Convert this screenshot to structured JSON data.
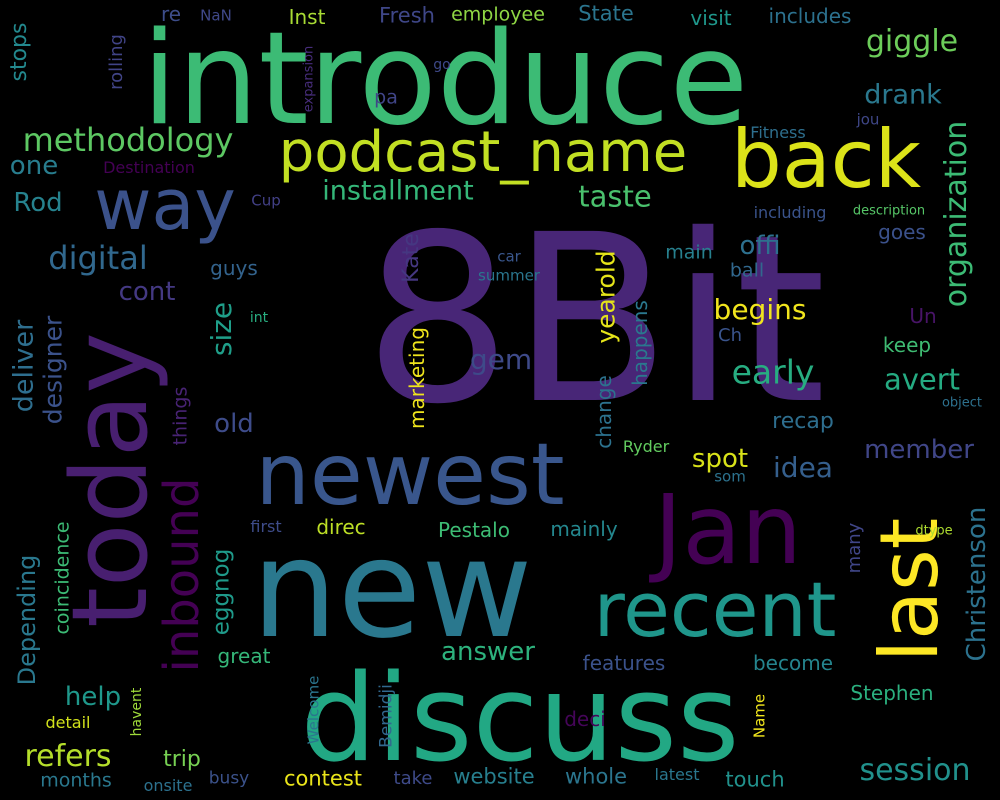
{
  "word_cloud": {
    "background": "#000000",
    "words": [
      {
        "text": "8Bit",
        "color": "#482677"
      },
      {
        "text": "introduce",
        "color": "#3CBB75"
      },
      {
        "text": "new",
        "color": "#2A788E"
      },
      {
        "text": "discuss",
        "color": "#22A884"
      },
      {
        "text": "Jan",
        "color": "#440154"
      },
      {
        "text": "today",
        "color": "#481F70"
      },
      {
        "text": "newest",
        "color": "#39568C"
      },
      {
        "text": "recent",
        "color": "#1F968B"
      },
      {
        "text": "back",
        "color": "#DCE319"
      },
      {
        "text": "last",
        "color": "#FDE725"
      },
      {
        "text": "way",
        "color": "#3B528B"
      },
      {
        "text": "podcast_name",
        "color": "#C2DF23"
      },
      {
        "text": "inbound",
        "color": "#440154"
      },
      {
        "text": "methodology",
        "color": "#5DC863"
      },
      {
        "text": "organization",
        "color": "#3CBB75"
      },
      {
        "text": "Christenson",
        "color": "#2C728E"
      },
      {
        "text": "session",
        "color": "#21918C"
      },
      {
        "text": "Depending",
        "color": "#2A788E"
      },
      {
        "text": "digital",
        "color": "#31688E"
      },
      {
        "text": "installment",
        "color": "#35B779"
      },
      {
        "text": "refers",
        "color": "#B5DE2B"
      },
      {
        "text": "giggle",
        "color": "#6CCD5A"
      },
      {
        "text": "drank",
        "color": "#2A788E"
      },
      {
        "text": "taste",
        "color": "#4AC16D"
      },
      {
        "text": "avert",
        "color": "#25AB82"
      },
      {
        "text": "early",
        "color": "#27AD81"
      },
      {
        "text": "idea",
        "color": "#355F8D"
      },
      {
        "text": "answer",
        "color": "#2DB27D"
      },
      {
        "text": "deliver",
        "color": "#2E6E8E"
      },
      {
        "text": "designer",
        "color": "#3B528B"
      },
      {
        "text": "size",
        "color": "#1F9E89"
      },
      {
        "text": "gem",
        "color": "#3E4A89"
      },
      {
        "text": "yearold",
        "color": "#E5E419"
      },
      {
        "text": "begins",
        "color": "#F1E51D"
      },
      {
        "text": "spot",
        "color": "#D8E219"
      },
      {
        "text": "member",
        "color": "#404688"
      },
      {
        "text": "Kate",
        "color": "#453781"
      },
      {
        "text": "eggnog",
        "color": "#1F9A8A"
      },
      {
        "text": "help",
        "color": "#1F988B"
      },
      {
        "text": "cont",
        "color": "#443983"
      },
      {
        "text": "offi",
        "color": "#2D708E"
      },
      {
        "text": "Rod",
        "color": "#26828E"
      },
      {
        "text": "one",
        "color": "#287D8E"
      },
      {
        "text": "old",
        "color": "#3E4C8A"
      },
      {
        "text": "stops",
        "color": "#23898E"
      },
      {
        "text": "rolling",
        "color": "#414487"
      },
      {
        "text": "re",
        "color": "#3D4D8A"
      },
      {
        "text": "NaN",
        "color": "#3F4889"
      },
      {
        "text": "Inst",
        "color": "#A8DB34"
      },
      {
        "text": "Fresh",
        "color": "#3F4788"
      },
      {
        "text": "employee",
        "color": "#8FD744"
      },
      {
        "text": "State",
        "color": "#2B758E"
      },
      {
        "text": "visit",
        "color": "#1F978B"
      },
      {
        "text": "includes",
        "color": "#2C718E"
      },
      {
        "text": "go",
        "color": "#3E4989"
      },
      {
        "text": "expansion",
        "color": "#472D7B"
      },
      {
        "text": "pa",
        "color": "#404588"
      },
      {
        "text": "jou",
        "color": "#3F4788"
      },
      {
        "text": "Fitness",
        "color": "#2E6F8E"
      },
      {
        "text": "Destination",
        "color": "#440154"
      },
      {
        "text": "Cup",
        "color": "#424086"
      },
      {
        "text": "including",
        "color": "#3A538B"
      },
      {
        "text": "description",
        "color": "#56C667"
      },
      {
        "text": "car",
        "color": "#39568C"
      },
      {
        "text": "summer",
        "color": "#2A768E"
      },
      {
        "text": "main",
        "color": "#27808E"
      },
      {
        "text": "goes",
        "color": "#3B518B"
      },
      {
        "text": "ball",
        "color": "#31688E"
      },
      {
        "text": "guys",
        "color": "#33638D"
      },
      {
        "text": "int",
        "color": "#28AE80"
      },
      {
        "text": "Un",
        "color": "#481467"
      },
      {
        "text": "keep",
        "color": "#3FBC73"
      },
      {
        "text": "Ch",
        "color": "#3A548C"
      },
      {
        "text": "marketing",
        "color": "#EFE51C"
      },
      {
        "text": "things",
        "color": "#482374"
      },
      {
        "text": "happens",
        "color": "#2A788E"
      },
      {
        "text": "change",
        "color": "#2C728E"
      },
      {
        "text": "recap",
        "color": "#2E6E8E"
      },
      {
        "text": "Ryder",
        "color": "#62CB5F"
      },
      {
        "text": "object",
        "color": "#2D718E"
      },
      {
        "text": "som",
        "color": "#2C728E"
      },
      {
        "text": "first",
        "color": "#3E4C8A"
      },
      {
        "text": "direc",
        "color": "#BDDF26"
      },
      {
        "text": "Pestalo",
        "color": "#3DBC74"
      },
      {
        "text": "mainly",
        "color": "#24878E"
      },
      {
        "text": "many",
        "color": "#404688"
      },
      {
        "text": "dtype",
        "color": "#ADDC30"
      },
      {
        "text": "coincidence",
        "color": "#3CBB75"
      },
      {
        "text": "great",
        "color": "#35B779"
      },
      {
        "text": "features",
        "color": "#3B528B"
      },
      {
        "text": "become",
        "color": "#25858E"
      },
      {
        "text": "Welcome",
        "color": "#2B758E"
      },
      {
        "text": "Bemidji",
        "color": "#31688E"
      },
      {
        "text": "Name",
        "color": "#F0E51C"
      },
      {
        "text": "Stephen",
        "color": "#2BB07F"
      },
      {
        "text": "detail",
        "color": "#D2E21B"
      },
      {
        "text": "havent",
        "color": "#9FDA3A"
      },
      {
        "text": "deci",
        "color": "#450559"
      },
      {
        "text": "trip",
        "color": "#77D153"
      },
      {
        "text": "months",
        "color": "#2A788E"
      },
      {
        "text": "onsite",
        "color": "#2C718E"
      },
      {
        "text": "busy",
        "color": "#3B528B"
      },
      {
        "text": "contest",
        "color": "#EAE51A"
      },
      {
        "text": "take",
        "color": "#3E4A89"
      },
      {
        "text": "website",
        "color": "#277F8E"
      },
      {
        "text": "whole",
        "color": "#2B758E"
      },
      {
        "text": "latest",
        "color": "#2A778E"
      },
      {
        "text": "touch",
        "color": "#21918C"
      }
    ]
  }
}
